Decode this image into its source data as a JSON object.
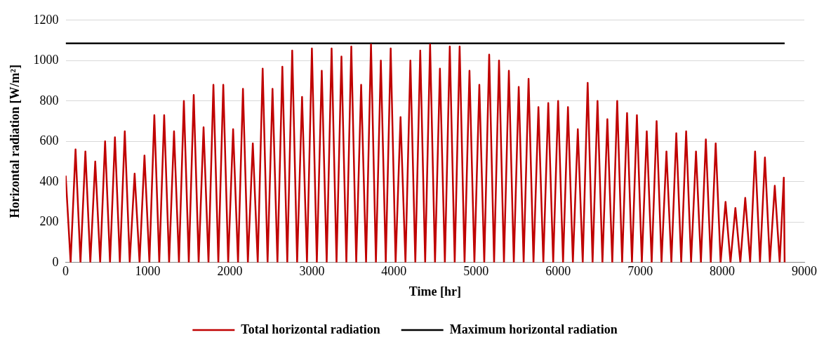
{
  "chart_data": {
    "type": "line",
    "xlabel": "Time [hr]",
    "ylabel": "Horizontal radiation [W/m²]",
    "xlim": [
      0,
      9000
    ],
    "xticks": [
      0,
      1000,
      2000,
      3000,
      4000,
      5000,
      6000,
      7000,
      8000,
      9000
    ],
    "ylim": [
      0,
      1200
    ],
    "yticks": [
      0,
      200,
      400,
      600,
      800,
      1000,
      1200
    ],
    "grid": "y",
    "legend": "bottom",
    "marker": "none",
    "line_style": "solid",
    "series": [
      {
        "name": "Total horizontal radiation",
        "color": "#c00000",
        "x": [
          0,
          60,
          120,
          180,
          240,
          300,
          360,
          420,
          480,
          540,
          600,
          660,
          720,
          780,
          840,
          900,
          960,
          1020,
          1080,
          1140,
          1200,
          1260,
          1320,
          1380,
          1440,
          1500,
          1560,
          1620,
          1680,
          1740,
          1800,
          1860,
          1920,
          1980,
          2040,
          2100,
          2160,
          2220,
          2280,
          2340,
          2400,
          2460,
          2520,
          2580,
          2640,
          2700,
          2760,
          2820,
          2880,
          2940,
          3000,
          3060,
          3120,
          3180,
          3240,
          3300,
          3360,
          3420,
          3480,
          3540,
          3600,
          3660,
          3720,
          3780,
          3840,
          3900,
          3960,
          4020,
          4080,
          4140,
          4200,
          4260,
          4320,
          4380,
          4440,
          4500,
          4560,
          4620,
          4680,
          4740,
          4800,
          4860,
          4920,
          4980,
          5040,
          5100,
          5160,
          5220,
          5280,
          5340,
          5400,
          5460,
          5520,
          5580,
          5640,
          5700,
          5760,
          5820,
          5880,
          5940,
          6000,
          6060,
          6120,
          6180,
          6240,
          6300,
          6360,
          6420,
          6480,
          6540,
          6600,
          6660,
          6720,
          6780,
          6840,
          6900,
          6960,
          7020,
          7080,
          7140,
          7200,
          7260,
          7320,
          7380,
          7440,
          7500,
          7560,
          7620,
          7680,
          7740,
          7800,
          7860,
          7920,
          7980,
          8040,
          8100,
          8160,
          8220,
          8280,
          8340,
          8400,
          8460,
          8520,
          8580,
          8640,
          8700,
          8750,
          8760
        ],
        "values": [
          430,
          0,
          560,
          0,
          550,
          0,
          500,
          0,
          600,
          0,
          620,
          0,
          650,
          0,
          440,
          0,
          530,
          0,
          730,
          0,
          730,
          0,
          650,
          0,
          800,
          0,
          830,
          0,
          670,
          0,
          880,
          0,
          880,
          0,
          660,
          0,
          860,
          0,
          590,
          0,
          960,
          0,
          860,
          0,
          970,
          0,
          1050,
          0,
          820,
          0,
          1060,
          0,
          950,
          0,
          1060,
          0,
          1020,
          0,
          1070,
          0,
          880,
          0,
          1080,
          0,
          1000,
          0,
          1060,
          0,
          720,
          0,
          1000,
          0,
          1050,
          0,
          1080,
          0,
          960,
          0,
          1070,
          0,
          1070,
          0,
          950,
          0,
          880,
          0,
          1030,
          0,
          1000,
          0,
          950,
          0,
          870,
          0,
          910,
          0,
          770,
          0,
          790,
          0,
          800,
          0,
          770,
          0,
          660,
          0,
          890,
          0,
          800,
          0,
          710,
          0,
          800,
          0,
          740,
          0,
          730,
          0,
          650,
          0,
          700,
          0,
          550,
          0,
          640,
          0,
          650,
          0,
          550,
          0,
          610,
          0,
          590,
          0,
          300,
          0,
          270,
          0,
          320,
          0,
          550,
          0,
          520,
          0,
          380,
          0,
          420,
          0
        ]
      },
      {
        "name": "Maximum horizontal radiation",
        "color": "#000000",
        "x": [
          0,
          8760
        ],
        "values": [
          1085,
          1085
        ]
      }
    ]
  }
}
